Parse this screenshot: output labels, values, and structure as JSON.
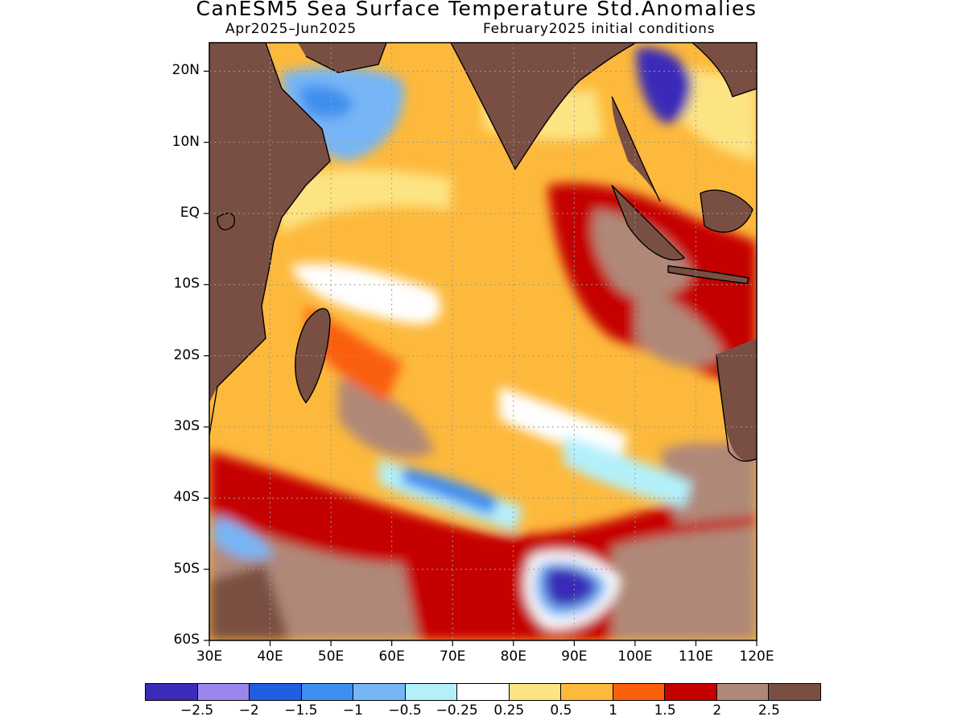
{
  "header": {
    "title": "CanESM5 Sea Surface Temperature Std.Anomalies",
    "period": "Apr2025–Jun2025",
    "init": "February2025 initial conditions"
  },
  "map": {
    "lon_range": [
      30,
      120
    ],
    "lat_range": [
      -60,
      24
    ],
    "lat_labels": [
      "20N",
      "10N",
      "EQ",
      "10S",
      "20S",
      "30S",
      "40S",
      "50S",
      "60S"
    ],
    "lon_labels": [
      "30E",
      "40E",
      "50E",
      "60E",
      "70E",
      "80E",
      "90E",
      "100E",
      "110E",
      "120E"
    ],
    "gridlines": true,
    "land_color": "#7a4f43"
  },
  "colorbar": {
    "colors": [
      "#3a2bb8",
      "#9b86f0",
      "#1f5fe0",
      "#3f8ff0",
      "#76b6f6",
      "#b4f0fa",
      "#ffffff",
      "#fde483",
      "#fdb93b",
      "#fa5f0c",
      "#c50000",
      "#b08878",
      "#7a4f43"
    ],
    "labels": [
      "−2.5",
      "−2",
      "−1.5",
      "−1",
      "−0.5",
      "−0.25",
      "0.25",
      "0.5",
      "1",
      "1.5",
      "2",
      "2.5"
    ]
  }
}
